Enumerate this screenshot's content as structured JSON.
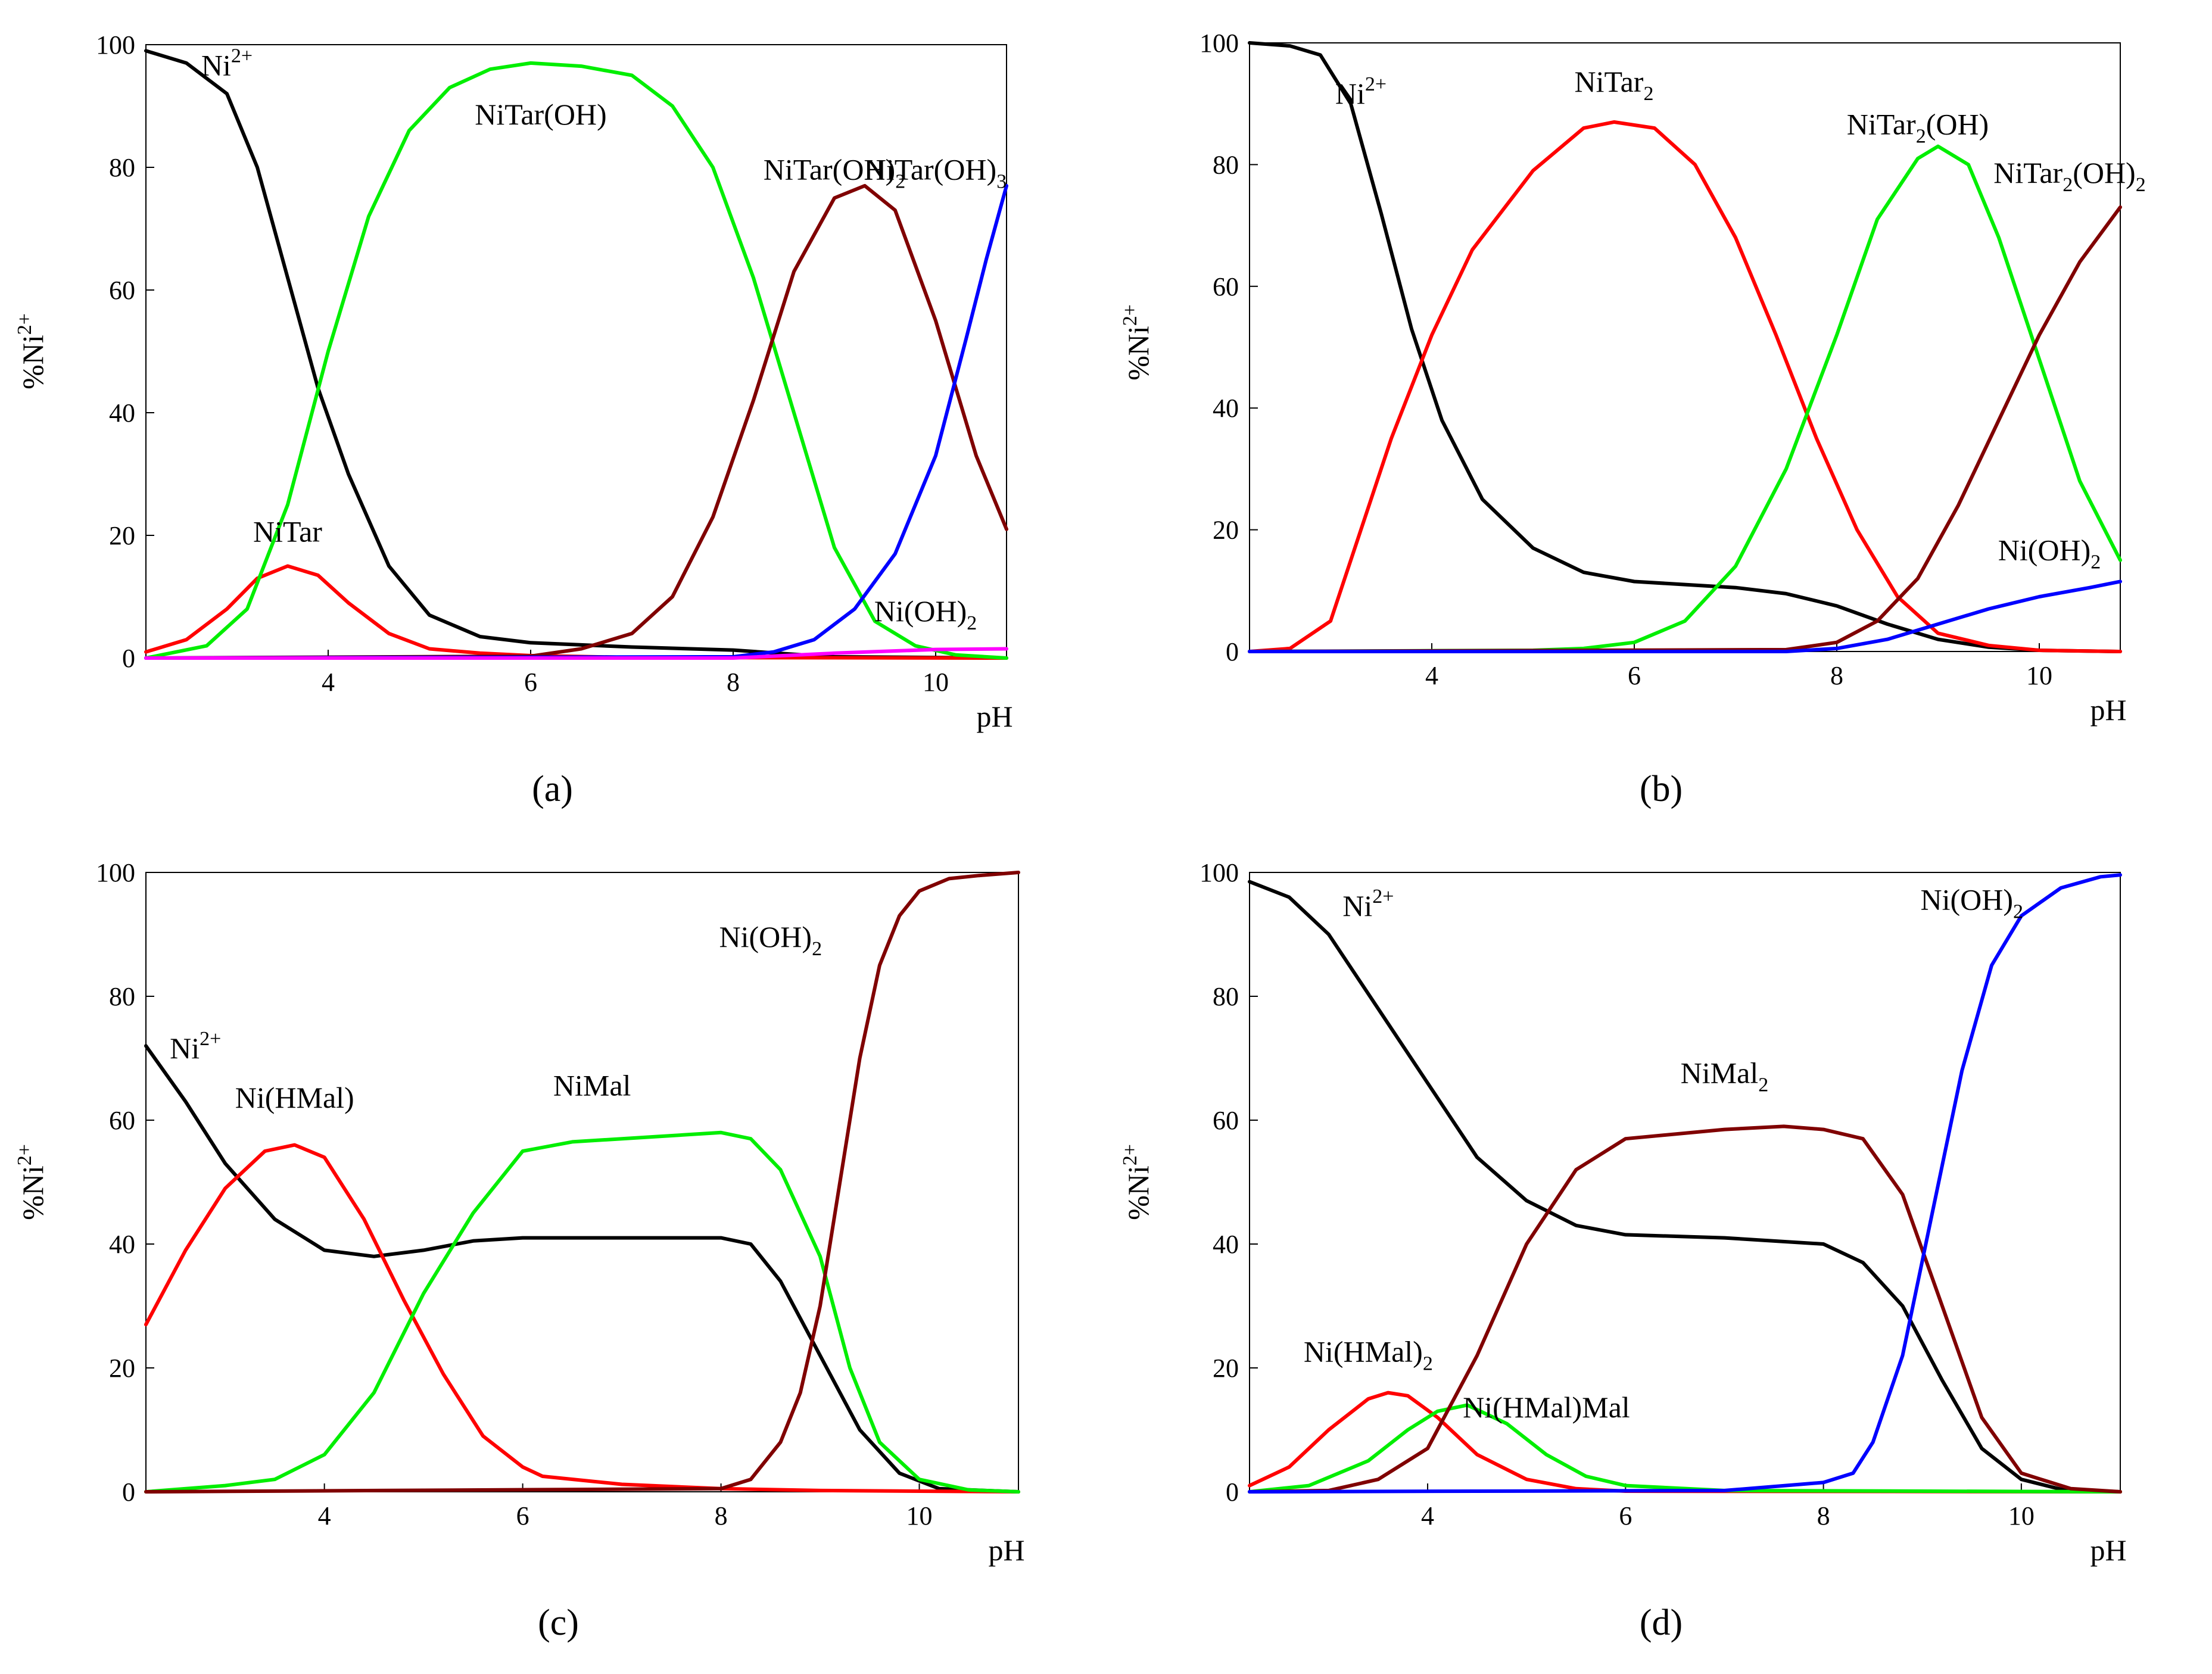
{
  "chart_data": [
    {
      "type": "line",
      "panel_label": "(a)",
      "xlabel": "pH",
      "ylabel": "%Ni",
      "ylabel_sup": "2+",
      "xlim": [
        2.2,
        10.7
      ],
      "ylim": [
        0,
        100
      ],
      "xticks": [
        4,
        6,
        8,
        10
      ],
      "yticks": [
        0,
        20,
        40,
        60,
        80,
        100
      ],
      "series": [
        {
          "name": "Ni2+",
          "color": "#000000",
          "x": [
            2.2,
            2.6,
            3.0,
            3.3,
            3.6,
            3.9,
            4.2,
            4.6,
            5.0,
            5.5,
            6.0,
            7.0,
            8.0,
            8.6,
            9.0,
            10.7
          ],
          "y": [
            99,
            97,
            92,
            80,
            62,
            44,
            30,
            15,
            7,
            3.5,
            2.5,
            1.8,
            1.3,
            0.6,
            0.2,
            0
          ]
        },
        {
          "name": "NiTar",
          "color": "#ff0000",
          "x": [
            2.2,
            2.6,
            3.0,
            3.3,
            3.6,
            3.9,
            4.2,
            4.6,
            5.0,
            5.5,
            6.0,
            7.0,
            10.7
          ],
          "y": [
            1,
            3,
            8,
            13,
            15,
            13.5,
            9,
            4,
            1.5,
            0.8,
            0.4,
            0.1,
            0
          ]
        },
        {
          "name": "NiTar(OH)",
          "color": "#00ee00",
          "x": [
            2.2,
            2.8,
            3.2,
            3.6,
            4.0,
            4.4,
            4.8,
            5.2,
            5.6,
            6.0,
            6.5,
            7.0,
            7.4,
            7.8,
            8.2,
            8.6,
            9.0,
            9.4,
            9.8,
            10.2,
            10.7
          ],
          "y": [
            0,
            2,
            8,
            25,
            50,
            72,
            86,
            93,
            96,
            97,
            96.5,
            95,
            90,
            80,
            62,
            40,
            18,
            6,
            2,
            0.5,
            0
          ]
        },
        {
          "name": "NiTar(OH)2",
          "color": "#800000",
          "x": [
            2.2,
            6.0,
            6.5,
            7.0,
            7.4,
            7.8,
            8.2,
            8.6,
            9.0,
            9.3,
            9.6,
            10.0,
            10.4,
            10.7
          ],
          "y": [
            0,
            0.3,
            1.5,
            4,
            10,
            23,
            42,
            63,
            75,
            77,
            73,
            55,
            33,
            21
          ]
        },
        {
          "name": "NiTar(OH)3",
          "color": "#0000ff",
          "x": [
            2.2,
            8.0,
            8.4,
            8.8,
            9.2,
            9.6,
            10.0,
            10.3,
            10.5,
            10.7
          ],
          "y": [
            0,
            0.2,
            1,
            3,
            8,
            17,
            33,
            52,
            65,
            77
          ]
        },
        {
          "name": "Ni(OH)2",
          "color": "#ff00ff",
          "x": [
            2.2,
            8.0,
            9.0,
            10.0,
            10.7
          ],
          "y": [
            0,
            0,
            0.8,
            1.4,
            1.5
          ]
        }
      ],
      "labels": [
        {
          "base": "Ni",
          "sup": "2+",
          "x": 3.0,
          "y": 95
        },
        {
          "base": "NiTar(OH)",
          "x": 6.1,
          "y": 87
        },
        {
          "base": "NiTar(OH)",
          "sub": "2",
          "x": 9.0,
          "y": 78
        },
        {
          "base": "NiTar(OH)",
          "sub": "3",
          "x": 10.0,
          "y": 78
        },
        {
          "base": "NiTar",
          "x": 3.6,
          "y": 19
        },
        {
          "base": "Ni(OH)",
          "sub": "2",
          "x": 9.9,
          "y": 6
        }
      ]
    },
    {
      "type": "line",
      "panel_label": "(b)",
      "xlabel": "pH",
      "ylabel": "%Ni",
      "ylabel_sup": "2+",
      "xlim": [
        2.2,
        10.8
      ],
      "ylim": [
        0,
        100
      ],
      "xticks": [
        4,
        6,
        8,
        10
      ],
      "yticks": [
        0,
        20,
        40,
        60,
        80,
        100
      ],
      "series": [
        {
          "name": "Ni2+",
          "color": "#000000",
          "x": [
            2.2,
            2.6,
            2.9,
            3.2,
            3.5,
            3.8,
            4.1,
            4.5,
            5.0,
            5.5,
            6.0,
            6.5,
            7.0,
            7.5,
            8.0,
            8.5,
            9.0,
            9.5,
            10.0,
            10.8
          ],
          "y": [
            100,
            99.5,
            98,
            90,
            72,
            53,
            38,
            25,
            17,
            13,
            11.5,
            11,
            10.5,
            9.5,
            7.5,
            4.5,
            2,
            0.7,
            0.2,
            0
          ]
        },
        {
          "name": "NiTar2",
          "color": "#ff0000",
          "x": [
            2.2,
            2.6,
            3.0,
            3.3,
            3.6,
            4.0,
            4.4,
            5.0,
            5.5,
            5.8,
            6.2,
            6.6,
            7.0,
            7.4,
            7.8,
            8.2,
            8.6,
            9.0,
            9.5,
            10.0,
            10.8
          ],
          "y": [
            0,
            0.5,
            5,
            20,
            35,
            52,
            66,
            79,
            86,
            87,
            86,
            80,
            68,
            52,
            35,
            20,
            9,
            3,
            1,
            0.2,
            0
          ]
        },
        {
          "name": "NiTar2(OH)",
          "color": "#00ee00",
          "x": [
            2.2,
            5.0,
            5.5,
            6.0,
            6.5,
            7.0,
            7.5,
            8.0,
            8.4,
            8.8,
            9.0,
            9.3,
            9.6,
            10.0,
            10.4,
            10.8
          ],
          "y": [
            0,
            0.2,
            0.5,
            1.5,
            5,
            14,
            30,
            52,
            71,
            81,
            83,
            80,
            68,
            48,
            28,
            15
          ]
        },
        {
          "name": "NiTar2(OH)2",
          "color": "#800000",
          "x": [
            2.2,
            7.5,
            8.0,
            8.4,
            8.8,
            9.2,
            9.6,
            10.0,
            10.4,
            10.8
          ],
          "y": [
            0,
            0.3,
            1.5,
            5,
            12,
            24,
            38,
            52,
            64,
            73
          ]
        },
        {
          "name": "Ni(OH)2",
          "color": "#0000ff",
          "x": [
            2.2,
            7.5,
            8.0,
            8.5,
            9.0,
            9.5,
            10.0,
            10.5,
            10.8
          ],
          "y": [
            0,
            0,
            0.5,
            2,
            4.5,
            7,
            9,
            10.5,
            11.5
          ]
        }
      ],
      "labels": [
        {
          "base": "Ni",
          "sup": "2+",
          "x": 3.3,
          "y": 90
        },
        {
          "base": "NiTar",
          "sub": "2",
          "x": 5.8,
          "y": 92
        },
        {
          "base": "NiTar",
          "sub": "2",
          "tail": "(OH)",
          "x": 8.8,
          "y": 85
        },
        {
          "base": "NiTar",
          "sub": "2",
          "tail": "(OH)",
          "sub2": "2",
          "x": 10.3,
          "y": 77
        },
        {
          "base": "Ni(OH)",
          "sub": "2",
          "x": 10.1,
          "y": 15
        }
      ]
    },
    {
      "type": "line",
      "panel_label": "(c)",
      "xlabel": "pH",
      "ylabel": "%Ni",
      "ylabel_sup": "2+",
      "xlim": [
        2.2,
        11.0
      ],
      "ylim": [
        0,
        100
      ],
      "xticks": [
        4,
        6,
        8,
        10
      ],
      "yticks": [
        0,
        20,
        40,
        60,
        80,
        100
      ],
      "series": [
        {
          "name": "Ni2+",
          "color": "#000000",
          "x": [
            2.2,
            2.6,
            3.0,
            3.5,
            4.0,
            4.5,
            5.0,
            5.5,
            6.0,
            7.0,
            8.0,
            8.3,
            8.6,
            9.0,
            9.4,
            9.8,
            10.2,
            11.0
          ],
          "y": [
            72,
            63,
            53,
            44,
            39,
            38,
            39,
            40.5,
            41,
            41,
            41,
            40,
            34,
            22,
            10,
            3,
            0.5,
            0
          ]
        },
        {
          "name": "Ni(HMal)",
          "color": "#ff0000",
          "x": [
            2.2,
            2.6,
            3.0,
            3.4,
            3.7,
            4.0,
            4.4,
            4.8,
            5.2,
            5.6,
            6.0,
            6.2,
            7.0,
            8.0,
            9.0,
            11.0
          ],
          "y": [
            27,
            39,
            49,
            55,
            56,
            54,
            44,
            31,
            19,
            9,
            4,
            2.5,
            1.2,
            0.5,
            0.2,
            0
          ]
        },
        {
          "name": "NiMal",
          "color": "#00ee00",
          "x": [
            2.2,
            3.0,
            3.5,
            4.0,
            4.5,
            5.0,
            5.5,
            6.0,
            6.5,
            7.0,
            8.0,
            8.3,
            8.6,
            9.0,
            9.3,
            9.6,
            10.0,
            10.5,
            11.0
          ],
          "y": [
            0,
            1,
            2,
            6,
            16,
            32,
            45,
            55,
            56.5,
            57,
            58,
            57,
            52,
            38,
            20,
            8,
            2,
            0.3,
            0
          ]
        },
        {
          "name": "Ni(OH)2",
          "color": "#800000",
          "x": [
            2.2,
            8.0,
            8.3,
            8.6,
            8.8,
            9.0,
            9.2,
            9.4,
            9.6,
            9.8,
            10.0,
            10.3,
            10.6,
            11.0
          ],
          "y": [
            0,
            0.5,
            2,
            8,
            16,
            30,
            50,
            70,
            85,
            93,
            97,
            99,
            99.5,
            100
          ]
        }
      ],
      "labels": [
        {
          "base": "Ni",
          "sup": "2+",
          "x": 2.7,
          "y": 70
        },
        {
          "base": "Ni(HMal)",
          "x": 3.7,
          "y": 62
        },
        {
          "base": "NiMal",
          "x": 6.7,
          "y": 64
        },
        {
          "base": "Ni(OH)",
          "sub": "2",
          "x": 8.5,
          "y": 88
        }
      ]
    },
    {
      "type": "line",
      "panel_label": "(d)",
      "xlabel": "pH",
      "ylabel": "%Ni",
      "ylabel_sup": "2+",
      "xlim": [
        2.2,
        11.0
      ],
      "ylim": [
        0,
        100
      ],
      "xticks": [
        4,
        6,
        8,
        10
      ],
      "yticks": [
        0,
        20,
        40,
        60,
        80,
        100
      ],
      "series": [
        {
          "name": "Ni2+",
          "color": "#000000",
          "x": [
            2.2,
            2.6,
            3.0,
            3.5,
            4.0,
            4.5,
            5.0,
            5.5,
            6.0,
            7.0,
            8.0,
            8.4,
            8.8,
            9.2,
            9.6,
            10.0,
            10.4,
            11.0
          ],
          "y": [
            98.5,
            96,
            90,
            78,
            66,
            54,
            47,
            43,
            41.5,
            41,
            40,
            37,
            30,
            18,
            7,
            2,
            0.4,
            0
          ]
        },
        {
          "name": "Ni(HMal)2",
          "color": "#ff0000",
          "x": [
            2.2,
            2.6,
            3.0,
            3.4,
            3.6,
            3.8,
            4.1,
            4.5,
            5.0,
            5.5,
            6.0,
            11.0
          ],
          "y": [
            1,
            4,
            10,
            15,
            16,
            15.5,
            12,
            6,
            2,
            0.5,
            0.1,
            0
          ]
        },
        {
          "name": "Ni(HMal)Mal",
          "color": "#00ee00",
          "x": [
            2.2,
            2.8,
            3.4,
            3.8,
            4.1,
            4.4,
            4.8,
            5.2,
            5.6,
            6.0,
            7.0,
            11.0
          ],
          "y": [
            0,
            1,
            5,
            10,
            13,
            14,
            11,
            6,
            2.5,
            1,
            0.2,
            0
          ]
        },
        {
          "name": "NiMal2",
          "color": "#800000",
          "x": [
            2.2,
            3.0,
            3.5,
            4.0,
            4.5,
            5.0,
            5.5,
            6.0,
            7.0,
            7.6,
            8.0,
            8.4,
            8.8,
            9.2,
            9.6,
            10.0,
            10.5,
            11.0
          ],
          "y": [
            0,
            0.2,
            2,
            7,
            22,
            40,
            52,
            57,
            58.5,
            59,
            58.5,
            57,
            48,
            30,
            12,
            3,
            0.5,
            0
          ]
        },
        {
          "name": "Ni(OH)2",
          "color": "#0000ff",
          "x": [
            2.2,
            7.0,
            8.0,
            8.3,
            8.5,
            8.8,
            9.1,
            9.4,
            9.7,
            10.0,
            10.4,
            10.8,
            11.0
          ],
          "y": [
            0,
            0.2,
            1.5,
            3,
            8,
            22,
            45,
            68,
            85,
            93,
            97.5,
            99.3,
            99.6
          ]
        }
      ],
      "labels": [
        {
          "base": "Ni",
          "sup": "2+",
          "x": 3.4,
          "y": 93
        },
        {
          "base": "NiMal",
          "sub": "2",
          "x": 7.0,
          "y": 66
        },
        {
          "base": "Ni(OH)",
          "sub": "2",
          "x": 9.5,
          "y": 94
        },
        {
          "base": "Ni(HMal)",
          "sub": "2",
          "x": 3.4,
          "y": 21
        },
        {
          "base": "Ni(HMal)Mal",
          "x": 5.2,
          "y": 12
        }
      ]
    }
  ]
}
